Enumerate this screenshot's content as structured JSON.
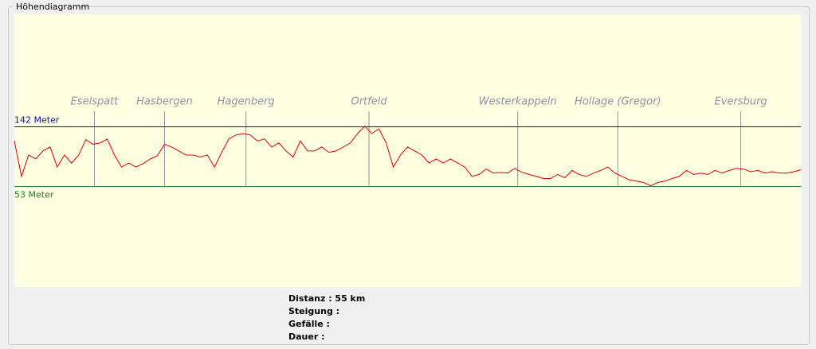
{
  "window": {
    "group_title": "Höhendiagramm",
    "stats": [
      "Distanz : 55 km",
      "Steigung :",
      "Gefälle :",
      "Dauer :"
    ]
  },
  "chart_data": {
    "type": "line",
    "xlim": [
      0,
      55
    ],
    "ylim": [
      -98,
      309
    ],
    "reference_lines": [
      {
        "value": 142,
        "label": "142 Meter",
        "color": "#1010a0"
      },
      {
        "value": 53,
        "label": "53 Meter",
        "color": "#208020"
      }
    ],
    "waypoints": [
      {
        "name": "Eselspatt",
        "x": 5.6
      },
      {
        "name": "Hasbergen",
        "x": 10.5
      },
      {
        "name": "Hagenberg",
        "x": 16.2
      },
      {
        "name": "Ortfeld",
        "x": 24.8
      },
      {
        "name": "Westerkappeln",
        "x": 35.2
      },
      {
        "name": "Hollage (Gregor)",
        "x": 42.2
      },
      {
        "name": "Eversburg",
        "x": 50.8
      }
    ],
    "series": [
      {
        "color": "#e00000",
        "x": [
          0,
          0.5,
          1,
          1.5,
          2,
          2.5,
          3,
          3.5,
          4,
          4.5,
          5,
          5.5,
          6,
          6.5,
          7,
          7.5,
          8,
          8.5,
          9,
          9.5,
          10,
          10.5,
          11,
          11.5,
          12,
          12.5,
          13,
          13.5,
          14,
          14.5,
          15,
          15.5,
          16,
          16.5,
          17,
          17.5,
          18,
          18.5,
          19,
          19.5,
          20,
          20.5,
          21,
          21.5,
          22,
          22.5,
          23,
          23.5,
          24,
          24.5,
          25,
          25.5,
          26,
          26.5,
          27,
          27.5,
          28,
          28.5,
          29,
          29.5,
          30,
          30.5,
          31,
          31.5,
          32,
          32.5,
          33,
          33.5,
          34,
          34.5,
          35,
          35.5,
          36,
          36.5,
          37,
          37.5,
          38,
          38.5,
          39,
          39.5,
          40,
          40.5,
          41,
          41.5,
          42,
          42.5,
          43,
          43.5,
          44,
          44.5,
          45,
          45.5,
          46,
          46.5,
          47,
          47.5,
          48,
          48.5,
          49,
          49.5,
          50,
          50.5,
          51,
          51.5,
          52,
          52.5,
          53,
          53.5,
          54,
          54.5,
          55
        ],
        "values": [
          120,
          67,
          99,
          93,
          105,
          111,
          81,
          99,
          87,
          99,
          122,
          115,
          117,
          123,
          99,
          81,
          87,
          81,
          86,
          93,
          98,
          115,
          111,
          105,
          99,
          99,
          96,
          99,
          81,
          103,
          123,
          129,
          131,
          129,
          120,
          123,
          111,
          117,
          105,
          96,
          120,
          105,
          105,
          111,
          103,
          105,
          111,
          117,
          131,
          142,
          131,
          138,
          117,
          81,
          99,
          111,
          105,
          99,
          87,
          93,
          87,
          93,
          87,
          81,
          67,
          70,
          78,
          72,
          73,
          72,
          79,
          73,
          70,
          67,
          64,
          64,
          70,
          65,
          76,
          70,
          67,
          72,
          76,
          81,
          72,
          67,
          62,
          60,
          58,
          53,
          58,
          60,
          64,
          67,
          76,
          70,
          72,
          70,
          76,
          72,
          76,
          79,
          78,
          74,
          76,
          72,
          74,
          72,
          72,
          74,
          77
        ]
      }
    ]
  }
}
